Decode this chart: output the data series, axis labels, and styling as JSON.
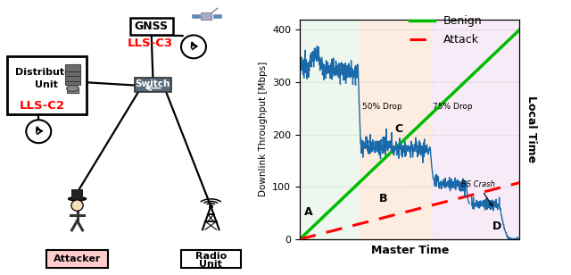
{
  "fig_width": 6.4,
  "fig_height": 3.08,
  "dpi": 100,
  "chart_bg_colors": {
    "zone1": "#e8f5e9",
    "zone2": "#fde8d8",
    "zone3": "#f3e5f5"
  },
  "benign_color": "#00bb00",
  "attack_color": "#ff0000",
  "blue_line_color": "#1a6aaa",
  "ylabel": "Downlink Throughput [Mbps]",
  "xlabel": "Master Time",
  "right_ylabel": "Local Time",
  "yticks": [
    0,
    100,
    200,
    300,
    400
  ],
  "ylim": [
    0,
    420
  ],
  "legend_benign": "Benign",
  "legend_attack": "Attack"
}
